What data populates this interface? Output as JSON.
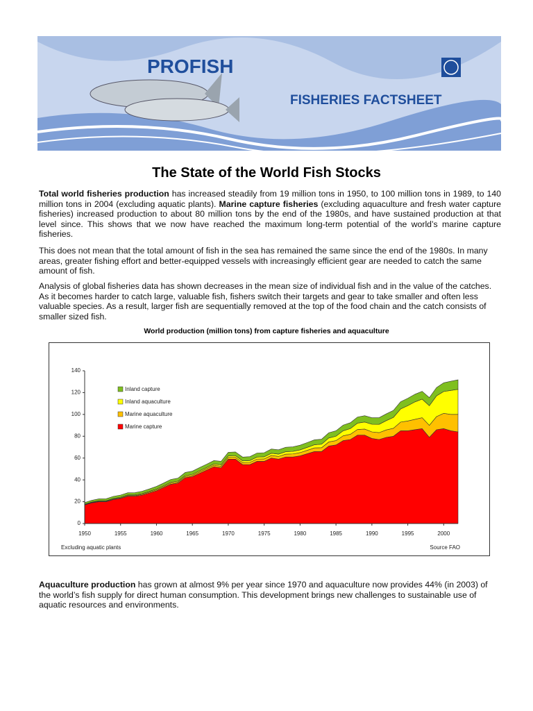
{
  "header": {
    "title": "PROFISH",
    "subtitle": "FISHERIES FACTSHEET"
  },
  "title": "The State of the World Fish Stocks",
  "paragraphs": [
    [
      "Total world fisheries production",
      " has increased steadily from 19 million tons in 1950, to 100 million tons in 1989, to 140 million tons in 2004 (excluding aquatic plants). ",
      "Marine capture fisheries",
      " (excluding aquaculture and fresh water capture fisheries) increased production to about 80 million tons by the end of the 1980s, and have sustained production at that level since. This shows that we now have reached the maximum long-term potential of the world’s marine capture fisheries."
    ],
    [
      "This does not mean that the total amount of fish in the sea has remained the same since the end of the 1980s. In many areas, greater fishing effort and better-equipped vessels with increasingly efficient gear are needed to catch the same amount of fish."
    ],
    [
      "Analysis of global fisheries data has shown decreases in the mean size of individual fish and in the value of the catches. As it becomes harder to catch large, valuable fish, fishers switch their targets and gear to take smaller and often less valuable species. As a result, larger fish are sequentially removed at the top of the food chain and the catch consists of smaller sized fish."
    ],
    [
      "Aquaculture production",
      " has grown at almost 9% per year since 1970 and aquaculture now provides 44% (in 2003) of the world’s fish supply for direct human consumption. This development brings new challenges to sustainable use of aquatic resources and environments."
    ]
  ],
  "chart_data": {
    "type": "stacked_area",
    "title": "World production (million tons) from capture fisheries and aquaculture",
    "note": "Excluding aquatic plants",
    "source": "Source FAO",
    "x": [
      1950,
      1951,
      1952,
      1953,
      1954,
      1955,
      1956,
      1957,
      1958,
      1959,
      1960,
      1961,
      1962,
      1963,
      1964,
      1965,
      1966,
      1967,
      1968,
      1969,
      1970,
      1971,
      1972,
      1973,
      1974,
      1975,
      1976,
      1977,
      1978,
      1979,
      1980,
      1981,
      1982,
      1983,
      1984,
      1985,
      1986,
      1987,
      1988,
      1989,
      1990,
      1991,
      1992,
      1993,
      1994,
      1995,
      1996,
      1997,
      1998,
      1999,
      2000,
      2001,
      2002
    ],
    "series": [
      {
        "name": "Marine capture",
        "color": "#ff0000",
        "values": [
          17,
          19,
          20,
          20,
          22,
          23,
          25,
          25,
          26,
          28,
          30,
          33,
          36,
          37,
          42,
          43,
          46,
          49,
          52,
          51,
          59,
          59,
          54,
          54,
          57,
          57,
          60,
          59,
          61,
          61,
          62,
          64,
          66,
          66,
          71,
          72,
          76,
          77,
          81,
          81,
          78,
          77,
          79,
          80,
          85,
          85,
          86,
          87,
          79,
          86,
          87,
          85,
          84
        ]
      },
      {
        "name": "Marine aquaculture",
        "color": "#ffc000",
        "values": [
          0.3,
          0.3,
          0.4,
          0.4,
          0.5,
          0.5,
          0.6,
          0.6,
          0.7,
          0.7,
          0.8,
          0.8,
          0.9,
          1,
          1,
          1.1,
          1.2,
          1.3,
          1.4,
          1.5,
          1.6,
          1.7,
          1.8,
          2,
          2.1,
          2.2,
          2.4,
          2.5,
          2.6,
          2.8,
          3,
          3.1,
          3.3,
          3.5,
          3.8,
          4,
          4.4,
          4.8,
          5.2,
          5.6,
          6,
          6.3,
          6.8,
          7.3,
          8,
          9,
          9.5,
          10,
          11,
          12,
          14,
          15,
          16
        ]
      },
      {
        "name": "Inland aquaculture",
        "color": "#ffff00",
        "values": [
          0.4,
          0.4,
          0.5,
          0.5,
          0.5,
          0.6,
          0.6,
          0.6,
          0.7,
          0.7,
          0.8,
          0.8,
          0.9,
          0.9,
          1,
          1,
          1.1,
          1.1,
          1.2,
          1.3,
          1.4,
          1.5,
          1.6,
          1.7,
          1.8,
          1.9,
          2,
          2.1,
          2.2,
          2.3,
          2.5,
          2.7,
          2.9,
          3.2,
          3.6,
          4,
          4.6,
          5.2,
          5.8,
          6.4,
          7,
          7.6,
          8.5,
          10,
          12,
          14,
          16,
          17,
          18,
          19,
          20,
          22,
          23
        ]
      },
      {
        "name": "Inland capture",
        "color": "#7fbf1f",
        "values": [
          1.5,
          1.6,
          1.7,
          1.8,
          1.9,
          2,
          2,
          2.1,
          2.2,
          2.3,
          2.4,
          2.5,
          2.6,
          2.7,
          2.8,
          2.9,
          3,
          3,
          3.1,
          3.2,
          3.3,
          3.4,
          3.5,
          3.6,
          3.7,
          3.8,
          3.9,
          4,
          4.1,
          4.2,
          4.3,
          4.4,
          4.5,
          4.6,
          4.8,
          5,
          5.2,
          5.4,
          5.6,
          5.8,
          6,
          6.1,
          6.2,
          6.4,
          6.6,
          6.8,
          7,
          7.2,
          7.4,
          7.6,
          8,
          8.4,
          8.7
        ]
      }
    ],
    "xlim": [
      1950,
      2002
    ],
    "xticks": [
      1950,
      1955,
      1960,
      1965,
      1970,
      1975,
      1980,
      1985,
      1990,
      1995,
      2000
    ],
    "ylim": [
      0,
      140
    ],
    "yticks": [
      0,
      20,
      40,
      60,
      80,
      100,
      120,
      140
    ],
    "grid": false,
    "legend": "upper left"
  }
}
